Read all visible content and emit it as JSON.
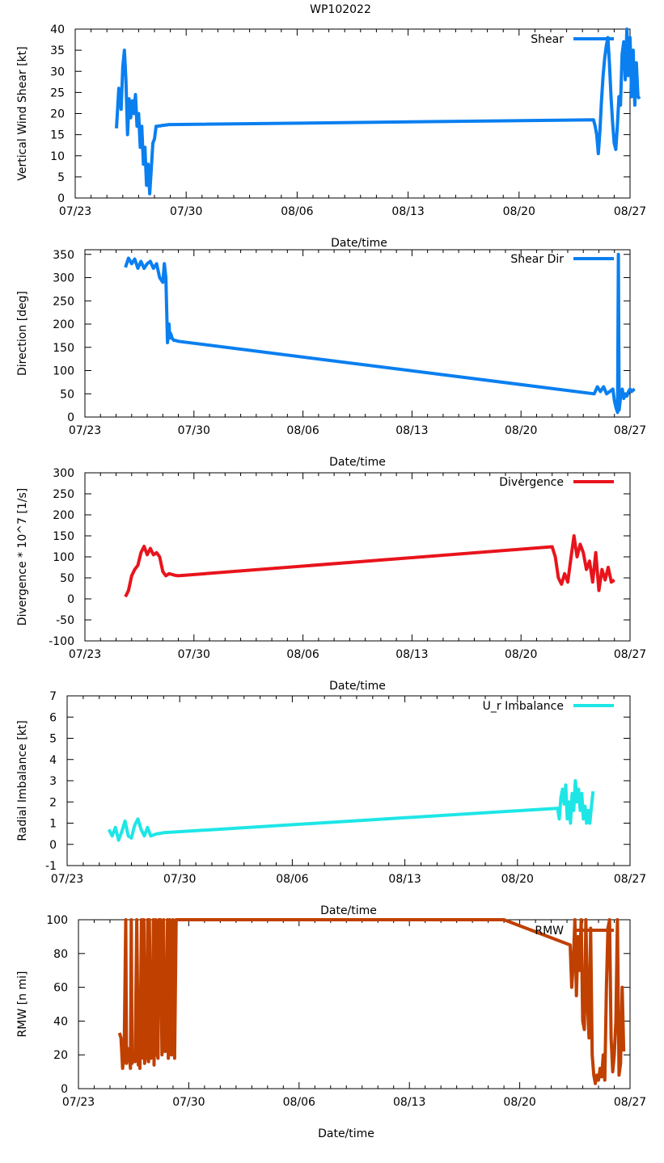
{
  "figure_title": "WP102022",
  "colors": {
    "shear": "#0a7ff0",
    "shear_dir": "#0a7ff0",
    "divergence": "#e8141c",
    "imbalance": "#1ee6e6",
    "rmw": "#c04000"
  },
  "chart_data": [
    {
      "type": "line",
      "title": "WP102022",
      "xlabel": "Date/time",
      "ylabel": "Vertical Wind Shear [kt]",
      "xlim": [
        0,
        35
      ],
      "ylim": [
        0,
        40
      ],
      "x_ticks": [
        {
          "x": 0,
          "label": "07/23"
        },
        {
          "x": 7,
          "label": "07/30"
        },
        {
          "x": 14,
          "label": "08/06"
        },
        {
          "x": 21,
          "label": "08/13"
        },
        {
          "x": 28,
          "label": "08/20"
        },
        {
          "x": 35,
          "label": "08/27"
        }
      ],
      "y_ticks": [
        0,
        5,
        10,
        15,
        20,
        25,
        30,
        35,
        40
      ],
      "series": [
        {
          "name": "Shear",
          "color": "#0a7ff0",
          "x": [
            2.6,
            2.75,
            2.9,
            3.0,
            3.1,
            3.2,
            3.3,
            3.4,
            3.5,
            3.6,
            3.7,
            3.8,
            3.9,
            4.0,
            4.1,
            4.2,
            4.3,
            4.4,
            4.5,
            4.6,
            4.7,
            4.8,
            4.9,
            5.0,
            5.1,
            5.2,
            5.3,
            5.4,
            5.5,
            5.6,
            5.7,
            5.8,
            5.9,
            6.0,
            6.05,
            32.7,
            32.8,
            32.9,
            33.0,
            33.1,
            33.2,
            33.3,
            33.4,
            33.5,
            33.6,
            33.7,
            33.8,
            33.9,
            34.0,
            34.1,
            34.2,
            34.3,
            34.4,
            34.5,
            34.6,
            34.7,
            34.8,
            34.9,
            35.0,
            35.1,
            35.2,
            35.3,
            35.4,
            35.5,
            35.6
          ],
          "y": [
            16.5,
            26.0,
            21.0,
            31.0,
            35.0,
            28.0,
            15.0,
            23.5,
            19.0,
            23.0,
            20.0,
            24.5,
            17.0,
            20.0,
            12.0,
            17.0,
            8.0,
            12.0,
            3.0,
            8.0,
            1.0,
            7.0,
            13.0,
            14.0,
            17.0,
            17.0,
            17.1,
            17.1,
            17.2,
            17.2,
            17.3,
            17.3,
            17.4,
            17.4,
            17.4,
            18.5,
            17.0,
            15.0,
            10.5,
            16.0,
            23.0,
            29.0,
            33.0,
            36.0,
            38.0,
            32.0,
            24.0,
            18.0,
            13.0,
            11.5,
            17.0,
            24.0,
            22.0,
            34.0,
            37.0,
            28.0,
            40.0,
            29.0,
            38.0,
            24.0,
            35.0,
            22.0,
            32.0,
            24.0,
            23.5
          ]
        }
      ]
    },
    {
      "type": "line",
      "xlabel": "Date/time",
      "ylabel": "Direction [deg]",
      "xlim": [
        0,
        35
      ],
      "ylim": [
        0,
        360
      ],
      "x_ticks": [
        {
          "x": 0,
          "label": "07/23"
        },
        {
          "x": 7,
          "label": "07/30"
        },
        {
          "x": 14,
          "label": "08/06"
        },
        {
          "x": 21,
          "label": "08/13"
        },
        {
          "x": 28,
          "label": "08/20"
        },
        {
          "x": 35,
          "label": "08/27"
        }
      ],
      "y_ticks": [
        0,
        50,
        100,
        150,
        200,
        250,
        300,
        350
      ],
      "series": [
        {
          "name": "Shear Dir",
          "color": "#0a7ff0",
          "x": [
            2.6,
            2.8,
            3.0,
            3.2,
            3.4,
            3.6,
            3.8,
            4.0,
            4.2,
            4.4,
            4.6,
            4.8,
            5.0,
            5.1,
            5.2,
            5.3,
            5.4,
            5.45,
            5.5,
            5.55,
            5.6,
            5.7,
            5.8,
            5.9,
            6.0,
            32.7,
            32.9,
            33.1,
            33.3,
            33.5,
            33.7,
            33.9,
            34.0,
            34.1,
            34.2,
            34.25,
            34.3,
            34.4,
            34.5,
            34.6,
            34.7,
            34.8,
            34.9,
            35.0,
            35.1,
            35.2,
            35.3
          ],
          "y": [
            322,
            342,
            330,
            340,
            320,
            335,
            320,
            330,
            335,
            320,
            330,
            300,
            290,
            330,
            300,
            160,
            200,
            170,
            180,
            175,
            170,
            165,
            165,
            164,
            163,
            50,
            65,
            55,
            65,
            50,
            55,
            60,
            35,
            20,
            10,
            350,
            15,
            45,
            60,
            40,
            50,
            45,
            55,
            60,
            55,
            58,
            60
          ]
        }
      ]
    },
    {
      "type": "line",
      "xlabel": "Date/time",
      "ylabel": "Divergence * 10^7 [1/s]",
      "xlim": [
        0,
        35
      ],
      "ylim": [
        -100,
        300
      ],
      "x_ticks": [
        {
          "x": 0,
          "label": "07/23"
        },
        {
          "x": 7,
          "label": "07/30"
        },
        {
          "x": 14,
          "label": "08/06"
        },
        {
          "x": 21,
          "label": "08/13"
        },
        {
          "x": 28,
          "label": "08/20"
        },
        {
          "x": 35,
          "label": "08/27"
        }
      ],
      "y_ticks": [
        -100,
        -50,
        0,
        50,
        100,
        150,
        200,
        250,
        300
      ],
      "series": [
        {
          "name": "Divergence",
          "color": "#e8141c",
          "x": [
            2.6,
            2.8,
            3.0,
            3.2,
            3.4,
            3.6,
            3.8,
            4.0,
            4.2,
            4.4,
            4.6,
            4.8,
            5.0,
            5.2,
            5.4,
            5.6,
            5.8,
            6.0,
            30.0,
            30.2,
            30.4,
            30.6,
            30.8,
            31.0,
            31.2,
            31.4,
            31.6,
            31.8,
            32.0,
            32.2,
            32.4,
            32.6,
            32.8,
            33.0,
            33.2,
            33.4,
            33.6,
            33.8,
            34.0
          ],
          "y": [
            5,
            20,
            55,
            70,
            80,
            110,
            125,
            105,
            120,
            105,
            110,
            100,
            65,
            55,
            60,
            58,
            56,
            55,
            124,
            100,
            50,
            35,
            60,
            40,
            95,
            150,
            100,
            130,
            110,
            70,
            90,
            40,
            110,
            20,
            70,
            45,
            75,
            40,
            45
          ]
        }
      ]
    },
    {
      "type": "line",
      "xlabel": "Date/time",
      "ylabel": "Radial Imbalance [kt]",
      "xlim": [
        0,
        35
      ],
      "ylim": [
        -1,
        7
      ],
      "x_ticks": [
        {
          "x": 0,
          "label": "07/23"
        },
        {
          "x": 7,
          "label": "07/30"
        },
        {
          "x": 14,
          "label": "08/06"
        },
        {
          "x": 21,
          "label": "08/13"
        },
        {
          "x": 28,
          "label": "08/20"
        },
        {
          "x": 35,
          "label": "08/27"
        }
      ],
      "y_ticks": [
        -1,
        0,
        1,
        2,
        3,
        4,
        5,
        6,
        7
      ],
      "series": [
        {
          "name": "U_r Imbalance",
          "color": "#1ee6e6",
          "x": [
            2.6,
            2.8,
            3.0,
            3.2,
            3.4,
            3.6,
            3.8,
            4.0,
            4.2,
            4.4,
            4.6,
            4.8,
            5.0,
            5.2,
            5.4,
            5.6,
            5.8,
            6.0,
            30.5,
            30.6,
            30.7,
            30.8,
            30.9,
            31.0,
            31.1,
            31.2,
            31.3,
            31.4,
            31.5,
            31.6,
            31.7,
            31.8,
            31.9,
            32.0,
            32.1,
            32.2,
            32.3,
            32.4,
            32.5,
            32.6,
            32.7
          ],
          "y": [
            0.7,
            0.4,
            0.8,
            0.2,
            0.6,
            1.1,
            0.4,
            0.3,
            0.9,
            1.2,
            0.7,
            0.4,
            0.8,
            0.4,
            0.45,
            0.5,
            0.52,
            0.55,
            1.7,
            1.2,
            2.2,
            2.6,
            1.9,
            2.8,
            1.2,
            2.0,
            1.0,
            2.4,
            1.6,
            3.0,
            2.0,
            2.6,
            1.6,
            2.4,
            1.2,
            1.8,
            1.0,
            1.6,
            1.0,
            1.8,
            2.5
          ]
        }
      ]
    },
    {
      "type": "line",
      "xlabel": "Date/time",
      "ylabel": "RMW [n mi]",
      "xlim": [
        0,
        35
      ],
      "ylim": [
        0,
        100
      ],
      "x_ticks": [
        {
          "x": 0,
          "label": "07/23"
        },
        {
          "x": 7,
          "label": "07/30"
        },
        {
          "x": 14,
          "label": "08/06"
        },
        {
          "x": 21,
          "label": "08/13"
        },
        {
          "x": 28,
          "label": "08/20"
        },
        {
          "x": 35,
          "label": "08/27"
        }
      ],
      "y_ticks": [
        0,
        20,
        40,
        60,
        80,
        100
      ],
      "series": [
        {
          "name": "RMW",
          "color": "#c04000",
          "x": [
            2.6,
            2.7,
            2.8,
            2.9,
            3.0,
            3.05,
            3.1,
            3.2,
            3.3,
            3.35,
            3.4,
            3.5,
            3.6,
            3.7,
            3.8,
            3.85,
            3.9,
            4.0,
            4.1,
            4.15,
            4.2,
            4.3,
            4.4,
            4.45,
            4.5,
            4.6,
            4.7,
            4.75,
            4.8,
            4.9,
            5.0,
            5.05,
            5.1,
            5.2,
            5.3,
            5.35,
            5.4,
            5.5,
            5.6,
            5.65,
            5.7,
            5.8,
            5.9,
            6.0,
            6.1,
            6.2,
            27.0,
            31.2,
            31.3,
            31.4,
            31.5,
            31.6,
            31.7,
            31.8,
            31.9,
            32.0,
            32.1,
            32.2,
            32.3,
            32.4,
            32.5,
            32.6,
            32.7,
            32.8,
            32.9,
            33.0,
            33.1,
            33.2,
            33.3,
            33.4,
            33.5,
            33.6,
            33.7,
            33.8,
            33.9,
            34.0,
            34.1,
            34.2,
            34.3,
            34.4,
            34.5,
            34.6
          ],
          "y": [
            33,
            30,
            12,
            20,
            100,
            15,
            24,
            22,
            12,
            100,
            15,
            20,
            16,
            100,
            14,
            25,
            12,
            100,
            18,
            100,
            15,
            21,
            100,
            16,
            100,
            18,
            24,
            100,
            14,
            100,
            20,
            18,
            100,
            100,
            20,
            30,
            100,
            22,
            25,
            100,
            18,
            100,
            20,
            100,
            18,
            100,
            100,
            85,
            60,
            75,
            100,
            55,
            90,
            70,
            100,
            40,
            35,
            100,
            50,
            30,
            95,
            20,
            8,
            3,
            8,
            5,
            12,
            7,
            20,
            5,
            60,
            95,
            100,
            30,
            10,
            20,
            40,
            100,
            8,
            15,
            60,
            22
          ]
        }
      ]
    }
  ]
}
